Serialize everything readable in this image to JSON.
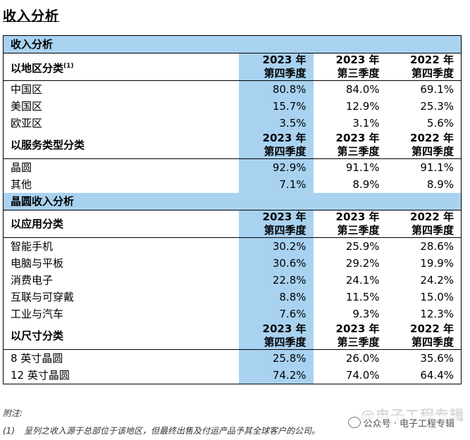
{
  "title": "收入分析",
  "headers": {
    "q4_2023": [
      "2023 年",
      "第四季度"
    ],
    "q3_2023": [
      "2023 年",
      "第三季度"
    ],
    "q4_2022": [
      "2022 年",
      "第四季度"
    ]
  },
  "sections": [
    {
      "title": "收入分析",
      "groups": [
        {
          "label": "以地区分类",
          "note_mark": "(1)",
          "rows": [
            {
              "label": "中国区",
              "q4_2023": "80.8%",
              "q3_2023": "84.0%",
              "q4_2022": "69.1%"
            },
            {
              "label": "美国区",
              "q4_2023": "15.7%",
              "q3_2023": "12.9%",
              "q4_2022": "25.3%"
            },
            {
              "label": "欧亚区",
              "q4_2023": "3.5%",
              "q3_2023": "3.1%",
              "q4_2022": "5.6%"
            }
          ]
        },
        {
          "label": "以服务类型分类",
          "rows": [
            {
              "label": "晶圆",
              "q4_2023": "92.9%",
              "q3_2023": "91.1%",
              "q4_2022": "91.1%"
            },
            {
              "label": "其他",
              "q4_2023": "7.1%",
              "q3_2023": "8.9%",
              "q4_2022": "8.9%"
            }
          ]
        }
      ]
    },
    {
      "title": "晶圆收入分析",
      "groups": [
        {
          "label": "以应用分类",
          "rows": [
            {
              "label": "智能手机",
              "q4_2023": "30.2%",
              "q3_2023": "25.9%",
              "q4_2022": "28.6%"
            },
            {
              "label": "电脑与平板",
              "q4_2023": "30.6%",
              "q3_2023": "29.2%",
              "q4_2022": "19.9%"
            },
            {
              "label": "消费电子",
              "q4_2023": "22.8%",
              "q3_2023": "24.1%",
              "q4_2022": "24.2%"
            },
            {
              "label": "互联与可穿戴",
              "q4_2023": "8.8%",
              "q3_2023": "11.5%",
              "q4_2022": "15.0%"
            },
            {
              "label": "工业与汽车",
              "q4_2023": "7.6%",
              "q3_2023": "9.3%",
              "q4_2022": "12.3%"
            }
          ]
        },
        {
          "label": "以尺寸分类",
          "rows": [
            {
              "label": "8 英寸晶圆",
              "q4_2023": "25.8%",
              "q3_2023": "26.0%",
              "q4_2022": "35.6%"
            },
            {
              "label": "12 英寸晶圆",
              "q4_2023": "74.2%",
              "q3_2023": "74.0%",
              "q4_2022": "64.4%"
            }
          ]
        }
      ]
    }
  ],
  "notes": {
    "heading": "附注:",
    "items": [
      {
        "key": "(1)",
        "text": "呈列之收入源于总部位于该地区，但最终出售及付运产品予其全球客户的公司。"
      }
    ]
  },
  "watermark": {
    "large": "@电子工程专辑",
    "small": "公众号 · 电子工程专辑"
  },
  "colors": {
    "highlight": "#a9d2f1"
  }
}
